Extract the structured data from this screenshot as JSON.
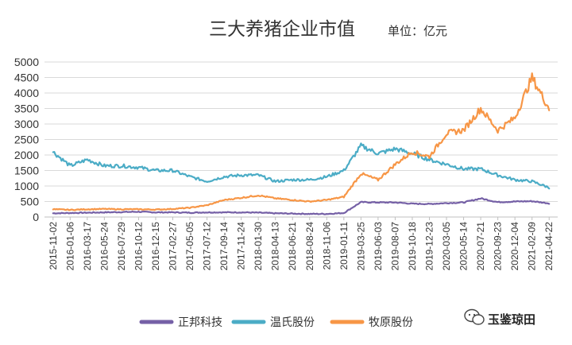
{
  "chart_data": {
    "type": "line",
    "title": "三大养猪企业市值",
    "subtitle": "单位：亿元",
    "ylim": [
      0,
      5000
    ],
    "yticks": [
      0,
      500,
      1000,
      1500,
      2000,
      2500,
      3000,
      3500,
      4000,
      4500,
      5000
    ],
    "x": [
      "2015-11-02",
      "2016-01-06",
      "2016-03-17",
      "2016-05-24",
      "2016-07-29",
      "2016-10-12",
      "2016-12-15",
      "2017-02-27",
      "2017-05-05",
      "2017-07-12",
      "2017-09-14",
      "2017-11-24",
      "2018-01-30",
      "2018-04-13",
      "2018-06-21",
      "2018-08-24",
      "2018-11-06",
      "2019-01-11",
      "2019-03-25",
      "2019-06-03",
      "2019-08-07",
      "2019-10-18",
      "2019-12-23",
      "2020-03-05",
      "2020-05-14",
      "2020-07-21",
      "2020-09-23",
      "2020-12-04",
      "2021-02-09",
      "2021-04-22"
    ],
    "grid": true,
    "legend": "bottom",
    "series": [
      {
        "name": "正邦科技",
        "color": "#7560a6",
        "values": [
          120,
          130,
          140,
          150,
          160,
          170,
          150,
          150,
          140,
          150,
          150,
          150,
          140,
          120,
          110,
          100,
          100,
          130,
          480,
          470,
          470,
          430,
          420,
          450,
          470,
          600,
          480,
          500,
          510,
          440
        ]
      },
      {
        "name": "温氏股份",
        "color": "#4bacc6",
        "values": [
          2100,
          1650,
          1850,
          1650,
          1650,
          1600,
          1500,
          1500,
          1300,
          1150,
          1300,
          1350,
          1350,
          1150,
          1200,
          1200,
          1300,
          1500,
          2300,
          2050,
          2200,
          2050,
          1850,
          1700,
          1550,
          1550,
          1350,
          1200,
          1150,
          950
        ]
      },
      {
        "name": "牧原股份",
        "color": "#f79646",
        "values": [
          250,
          230,
          250,
          260,
          250,
          250,
          240,
          260,
          300,
          380,
          550,
          620,
          700,
          600,
          550,
          500,
          550,
          650,
          1400,
          1200,
          1700,
          2100,
          1950,
          2700,
          2800,
          3500,
          2800,
          3200,
          4500,
          3500
        ]
      }
    ]
  },
  "watermark": "玉鉴琼田",
  "watermark_icon": "wechat-icon"
}
